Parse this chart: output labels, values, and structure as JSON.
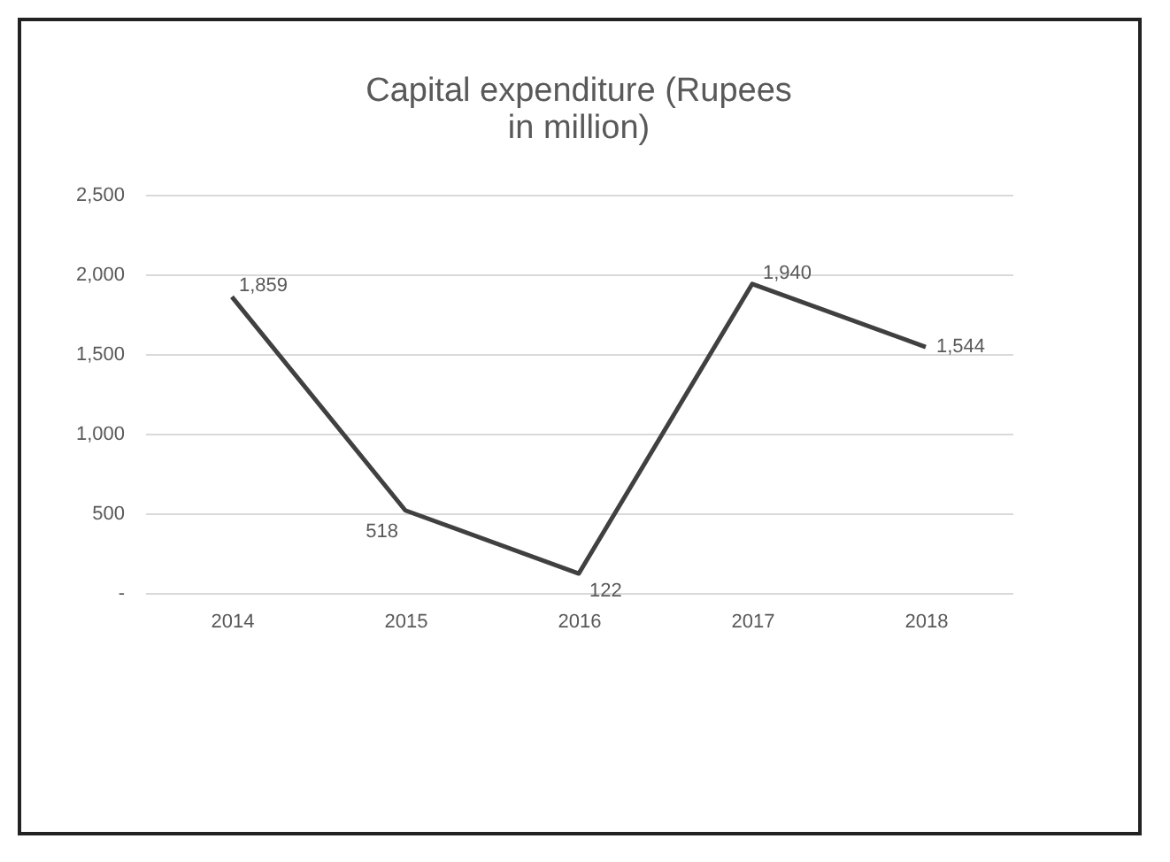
{
  "chart_data": {
    "type": "line",
    "title": "Capital expenditure (Rupees in million)",
    "categories": [
      "2014",
      "2015",
      "2016",
      "2017",
      "2018"
    ],
    "series": [
      {
        "color": "#404040",
        "values": [
          1859,
          518,
          122,
          1940,
          1544
        ],
        "value_labels": [
          "1,859",
          "518",
          "122",
          "1,940",
          "1,544"
        ]
      }
    ],
    "ylim": [
      0,
      2500
    ],
    "yticks": [
      {
        "value": 0,
        "label": "-"
      },
      {
        "value": 500,
        "label": "500"
      },
      {
        "value": 1000,
        "label": "1,000"
      },
      {
        "value": 1500,
        "label": "1,500"
      },
      {
        "value": 2000,
        "label": "2,000"
      },
      {
        "value": 2500,
        "label": "2,500"
      }
    ],
    "grid": "y",
    "marker": "none",
    "line_style": "solid"
  }
}
